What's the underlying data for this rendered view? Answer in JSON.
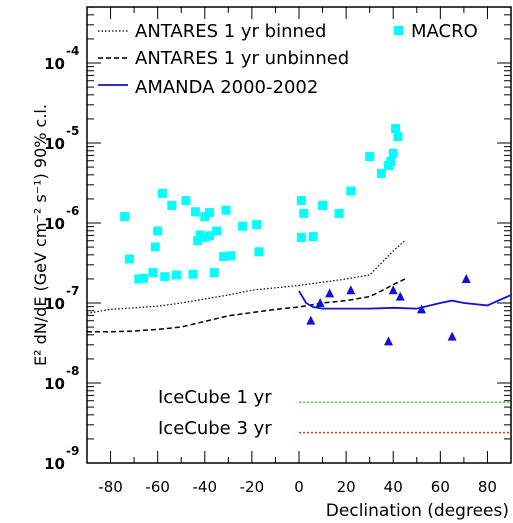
{
  "chart_data": {
    "type": "scatter",
    "title": "",
    "xlabel": "Declination (degrees)",
    "ylabel": "E² dN/dE (GeV cm⁻² s⁻¹) 90% c.l.",
    "xlim": [
      -90,
      90
    ],
    "ylim_log10": [
      -9,
      -3.3
    ],
    "y_scale": "log",
    "x_ticks": [
      "-80",
      "-60",
      "-40",
      "-20",
      "0",
      "20",
      "40",
      "60",
      "80"
    ],
    "x_tick_values": [
      -80,
      -60,
      -40,
      -20,
      0,
      20,
      40,
      60,
      80
    ],
    "y_ticks": [
      {
        "base": "10",
        "exp": "-4",
        "value": -4
      },
      {
        "base": "10",
        "exp": "-5",
        "value": -5
      },
      {
        "base": "10",
        "exp": "-6",
        "value": -6
      },
      {
        "base": "10",
        "exp": "-7",
        "value": -7
      },
      {
        "base": "10",
        "exp": "-8",
        "value": -8
      },
      {
        "base": "10",
        "exp": "-9",
        "value": -9
      }
    ],
    "legend_position": "top",
    "series": [
      {
        "name": "ANTARES 1 yr binned",
        "kind": "line",
        "style": "dotted",
        "color": "#000000",
        "x": [
          -90,
          -80,
          -70,
          -60,
          -50,
          -40,
          -30,
          -20,
          -10,
          0,
          10,
          20,
          30,
          35,
          40,
          45
        ],
        "y_log10": [
          -7.13,
          -7.08,
          -7.06,
          -7.04,
          -7.0,
          -6.95,
          -6.9,
          -6.84,
          -6.81,
          -6.78,
          -6.74,
          -6.7,
          -6.65,
          -6.5,
          -6.35,
          -6.22
        ]
      },
      {
        "name": "ANTARES 1 yr unbinned",
        "kind": "line",
        "style": "dashed",
        "color": "#000000",
        "x": [
          -90,
          -80,
          -70,
          -60,
          -50,
          -40,
          -30,
          -20,
          -10,
          0,
          10,
          20,
          30,
          35,
          40,
          45
        ],
        "y_log10": [
          -7.36,
          -7.36,
          -7.35,
          -7.33,
          -7.3,
          -7.23,
          -7.16,
          -7.12,
          -7.08,
          -7.05,
          -7.0,
          -6.97,
          -6.92,
          -6.85,
          -6.77,
          -6.7
        ]
      },
      {
        "name": "AMANDA 2000-2002",
        "kind": "line",
        "style": "solid",
        "color": "#1010dd",
        "x": [
          0,
          3,
          6,
          10,
          20,
          30,
          40,
          50,
          60,
          65,
          70,
          80,
          90
        ],
        "y_log10": [
          -6.85,
          -7.0,
          -7.05,
          -7.07,
          -7.07,
          -7.07,
          -7.06,
          -7.07,
          -7.0,
          -6.97,
          -7.0,
          -7.03,
          -6.9
        ]
      },
      {
        "name": "MACRO",
        "kind": "points",
        "marker": "square",
        "color": "#00ffff",
        "x": [
          -74,
          -72,
          -68,
          -66,
          -62,
          -61,
          -60,
          -58,
          -57,
          -54,
          -52,
          -48,
          -45,
          -44,
          -43,
          -42,
          -40,
          -40,
          -38,
          -38,
          -36,
          -35,
          -32,
          -31,
          -29,
          -24,
          -18,
          -17,
          1,
          1,
          2,
          6,
          10,
          17,
          22,
          30,
          35,
          38,
          39,
          40,
          41,
          42
        ],
        "y_log10": [
          -5.92,
          -6.45,
          -6.7,
          -6.69,
          -6.62,
          -6.3,
          -6.1,
          -5.63,
          -6.67,
          -5.78,
          -6.65,
          -5.72,
          -6.64,
          -5.86,
          -6.22,
          -6.15,
          -5.92,
          -6.18,
          -6.16,
          -5.87,
          -6.62,
          -6.1,
          -6.42,
          -5.84,
          -6.41,
          -6.04,
          -6.02,
          -6.36,
          -6.18,
          -5.72,
          -5.88,
          -6.17,
          -5.78,
          -5.88,
          -5.6,
          -5.17,
          -5.38,
          -5.28,
          -5.23,
          -5.13,
          -4.82,
          -4.92
        ]
      },
      {
        "name": "",
        "kind": "points",
        "marker": "triangle",
        "color": "#1010dd",
        "x": [
          5,
          9,
          13,
          22,
          38,
          40,
          43,
          52,
          65,
          71
        ],
        "y_log10": [
          -7.22,
          -7.0,
          -6.88,
          -6.84,
          -7.48,
          -6.84,
          -6.92,
          -7.08,
          -7.42,
          -6.7
        ]
      },
      {
        "name": "IceCube 1 yr",
        "kind": "hline",
        "style": "dashed",
        "color": "#33ee33",
        "x": [
          0,
          90
        ],
        "y_log10": [
          -8.24,
          -8.24
        ]
      },
      {
        "name": "IceCube 3 yr",
        "kind": "hline",
        "style": "dashed",
        "color": "#ee3333",
        "x": [
          0,
          90
        ],
        "y_log10": [
          -8.62,
          -8.62
        ]
      }
    ]
  }
}
